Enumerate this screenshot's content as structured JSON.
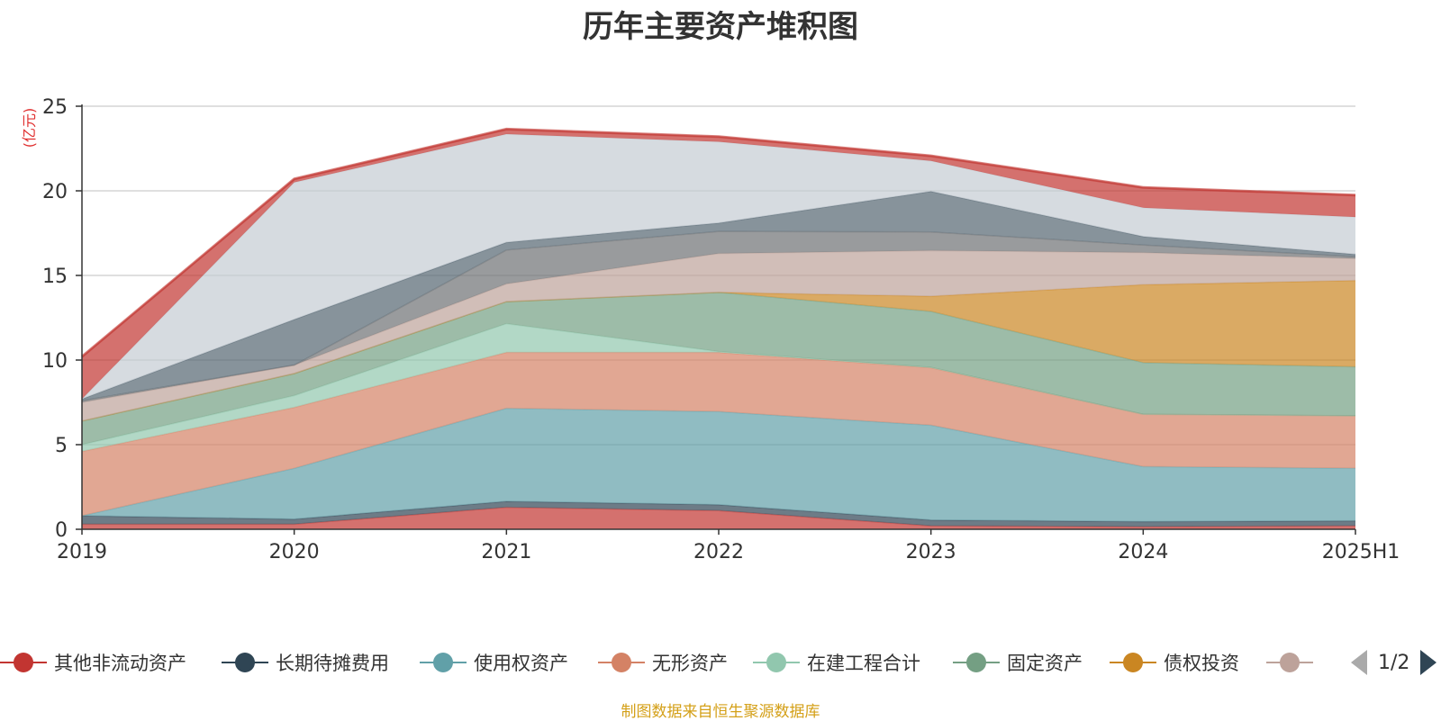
{
  "chart_data": {
    "type": "area",
    "stacked": true,
    "title": "历年主要资产堆积图",
    "unit_label": "(亿元)",
    "categories": [
      "2019",
      "2020",
      "2021",
      "2022",
      "2023",
      "2024",
      "2025H1"
    ],
    "ylim": [
      0,
      25
    ],
    "yticks": [
      0,
      5,
      10,
      15,
      20,
      25
    ],
    "grid": true,
    "legend_position": "bottom",
    "series": [
      {
        "name": "其他非流动资产",
        "color": "#c23531",
        "values": [
          0.3,
          0.3,
          1.3,
          1.1,
          0.2,
          0.15,
          0.2
        ]
      },
      {
        "name": "长期待摊费用",
        "color": "#2f4554",
        "values": [
          0.5,
          0.3,
          0.35,
          0.35,
          0.35,
          0.3,
          0.3
        ]
      },
      {
        "name": "使用权资产",
        "color": "#61a0a8",
        "values": [
          0.0,
          3.0,
          5.5,
          5.5,
          5.6,
          3.25,
          3.1
        ]
      },
      {
        "name": "无形资产",
        "color": "#d48265",
        "values": [
          3.8,
          3.6,
          3.3,
          3.5,
          3.4,
          3.1,
          3.1
        ]
      },
      {
        "name": "在建工程合计",
        "color": "#91c7ae",
        "values": [
          0.4,
          0.7,
          1.7,
          0.05,
          0.02,
          0.0,
          0.0
        ]
      },
      {
        "name": "固定资产",
        "color": "#749f83",
        "values": [
          1.4,
          1.3,
          1.3,
          3.5,
          3.3,
          3.05,
          2.9
        ]
      },
      {
        "name": "债权投资",
        "color": "#ca8622",
        "values": [
          0.0,
          0.0,
          0.0,
          0.0,
          0.9,
          4.6,
          5.1
        ]
      },
      {
        "name": "",
        "color": "#bda29a",
        "values": [
          1.1,
          0.5,
          1.05,
          2.3,
          2.7,
          1.9,
          1.3
        ]
      },
      {
        "name": "",
        "color": "#6e7074",
        "values": [
          0.1,
          0.0,
          2.0,
          1.3,
          1.1,
          0.45,
          0.1
        ]
      },
      {
        "name": "",
        "color": "#546570",
        "values": [
          0.1,
          2.7,
          0.45,
          0.5,
          2.4,
          0.5,
          0.15
        ]
      },
      {
        "name": "",
        "color": "#c4ccd3",
        "values": [
          0.0,
          8.1,
          6.4,
          4.8,
          1.8,
          1.7,
          2.2
        ]
      },
      {
        "name": "",
        "color": "#c23531",
        "values": [
          2.5,
          0.2,
          0.3,
          0.3,
          0.3,
          1.2,
          1.3
        ]
      }
    ]
  },
  "legend": {
    "pager_text": "1/2"
  },
  "footer": {
    "source_note": "制图数据来自恒生聚源数据库"
  }
}
